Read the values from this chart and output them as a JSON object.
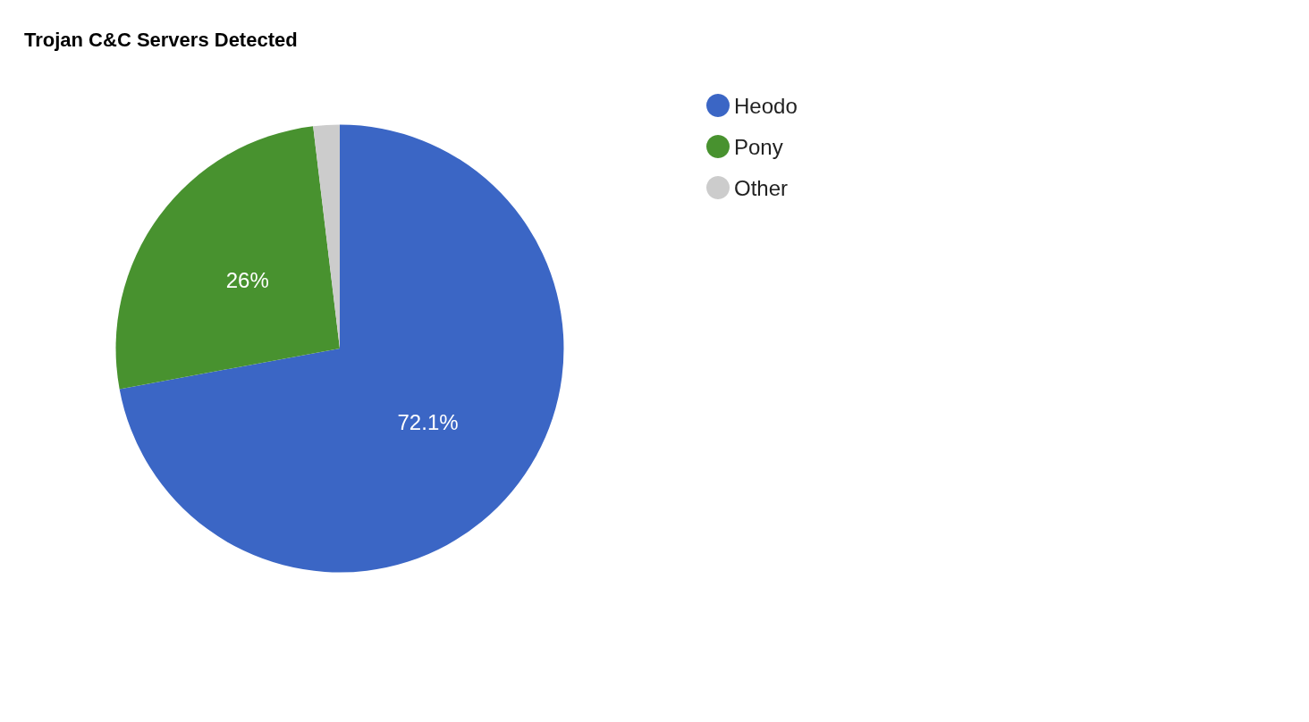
{
  "chart_data": {
    "type": "pie",
    "title": "Trojan C&C Servers Detected",
    "categories": [
      "Heodo",
      "Pony",
      "Other"
    ],
    "values": [
      72.1,
      26,
      1.9
    ],
    "colors": [
      "#3b66c5",
      "#48922f",
      "#cccccc"
    ],
    "value_labels": [
      "72.1%",
      "26%",
      null
    ],
    "legend": "top right"
  }
}
